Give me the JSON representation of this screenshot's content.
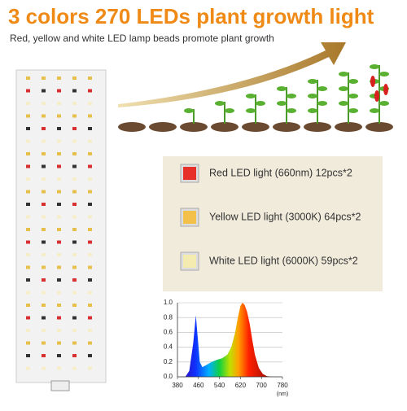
{
  "header": {
    "title": "3 colors 270 LEDs plant growth light",
    "subtitle": "Red, yellow and white LED lamp beads promote plant growth"
  },
  "legend": {
    "items": [
      {
        "label": "Red LED light (660nm) 12pcs*2",
        "color": "#e8302a"
      },
      {
        "label": "Yellow LED light (3000K) 64pcs*2",
        "color": "#f3c04a"
      },
      {
        "label": "White LED light (6000K) 59pcs*2",
        "color": "#f4ebb0"
      }
    ]
  },
  "chart_data": {
    "type": "area",
    "x": [
      380,
      410,
      425,
      440,
      450,
      458,
      465,
      475,
      490,
      510,
      530,
      550,
      570,
      585,
      600,
      610,
      620,
      628,
      636,
      645,
      655,
      665,
      675,
      690,
      705,
      720,
      740,
      780
    ],
    "values": [
      0,
      0,
      0.08,
      0.45,
      0.83,
      0.5,
      0.2,
      0.13,
      0.16,
      0.2,
      0.23,
      0.25,
      0.3,
      0.4,
      0.6,
      0.8,
      0.96,
      1.0,
      0.97,
      0.88,
      0.72,
      0.5,
      0.3,
      0.12,
      0.04,
      0.01,
      0,
      0
    ],
    "xlim": [
      380,
      780
    ],
    "ylim": [
      0,
      1
    ],
    "xticks": [
      380,
      460,
      540,
      620,
      700,
      780
    ],
    "yticks": [
      {
        "value": 0,
        "label": "0.0"
      },
      0.2,
      0.4,
      0.6,
      0.8,
      {
        "value": 1,
        "label": "1.0"
      }
    ],
    "xlabel": "(nm)"
  }
}
